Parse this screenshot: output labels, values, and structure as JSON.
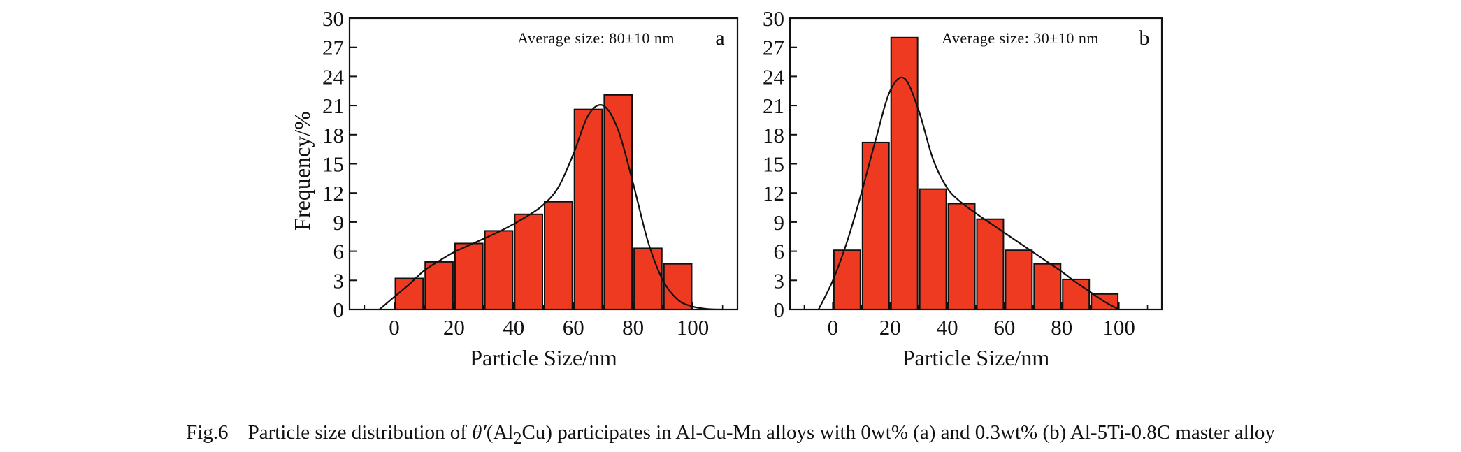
{
  "caption": {
    "label": "Fig.6",
    "text_before": "Particle size distribution of ",
    "theta": "θ′",
    "compound_open": "(Al",
    "compound_sub": "2",
    "compound_close": "Cu)",
    "text_after": " participates in Al-Cu-Mn alloys with 0wt% (a) and 0.3wt% (b) Al-5Ti-0.8C master alloy"
  },
  "chart_data": [
    {
      "type": "bar",
      "panel_label": "a",
      "annotation": "Average size: 80±10 nm",
      "xlabel": "Particle Size/nm",
      "ylabel": "Frequency/%",
      "x_ticks": [
        0,
        20,
        40,
        60,
        80,
        100
      ],
      "y_ticks": [
        0,
        3,
        6,
        9,
        12,
        15,
        18,
        21,
        24,
        27,
        30
      ],
      "xlim": [
        -15,
        115
      ],
      "ylim": [
        0,
        30
      ],
      "grid": false,
      "bin_width": 10,
      "bins": [
        [
          0,
          10
        ],
        [
          10,
          20
        ],
        [
          20,
          30
        ],
        [
          30,
          40
        ],
        [
          40,
          50
        ],
        [
          50,
          60
        ],
        [
          60,
          70
        ],
        [
          70,
          80
        ],
        [
          80,
          90
        ],
        [
          90,
          100
        ]
      ],
      "values": [
        3.2,
        4.9,
        6.8,
        8.1,
        9.8,
        11.1,
        20.6,
        22.1,
        6.3,
        4.7
      ],
      "bar_color": "#ef3a22",
      "fit_curve": {
        "x": [
          -5,
          0,
          5,
          10,
          15,
          20,
          25,
          30,
          35,
          40,
          45,
          50,
          55,
          60,
          65,
          70,
          75,
          80,
          85,
          90,
          95,
          100,
          105,
          110
        ],
        "y": [
          0,
          1.3,
          2.6,
          4.0,
          5.0,
          5.9,
          6.6,
          7.3,
          8.0,
          8.8,
          9.7,
          10.8,
          12.6,
          16.0,
          20.0,
          21.0,
          18.5,
          13.0,
          7.0,
          3.0,
          1.0,
          0.3,
          0.05,
          0
        ]
      }
    },
    {
      "type": "bar",
      "panel_label": "b",
      "annotation": "Average size: 30±10 nm",
      "xlabel": "Particle Size/nm",
      "ylabel": "",
      "x_ticks": [
        0,
        20,
        40,
        60,
        80,
        100
      ],
      "y_ticks": [
        0,
        3,
        6,
        9,
        12,
        15,
        18,
        21,
        24,
        27,
        30
      ],
      "xlim": [
        -15,
        115
      ],
      "ylim": [
        0,
        30
      ],
      "grid": false,
      "bin_width": 10,
      "bins": [
        [
          0,
          10
        ],
        [
          10,
          20
        ],
        [
          20,
          30
        ],
        [
          30,
          40
        ],
        [
          40,
          50
        ],
        [
          50,
          60
        ],
        [
          60,
          70
        ],
        [
          70,
          80
        ],
        [
          80,
          90
        ],
        [
          90,
          100
        ]
      ],
      "values": [
        6.1,
        17.2,
        28.0,
        12.4,
        10.9,
        9.3,
        6.1,
        4.7,
        3.1,
        1.6
      ],
      "bar_color": "#ef3a22",
      "fit_curve": {
        "x": [
          -5,
          0,
          5,
          10,
          15,
          20,
          25,
          30,
          35,
          40,
          45,
          50,
          55,
          60,
          65,
          70,
          75,
          80,
          85,
          90,
          95,
          100
        ],
        "y": [
          0,
          3.0,
          7.0,
          12.0,
          17.5,
          22.5,
          23.8,
          20.5,
          15.5,
          12.5,
          11.0,
          9.9,
          8.9,
          7.9,
          6.9,
          5.9,
          4.9,
          3.9,
          2.8,
          1.8,
          0.8,
          0
        ]
      }
    }
  ]
}
